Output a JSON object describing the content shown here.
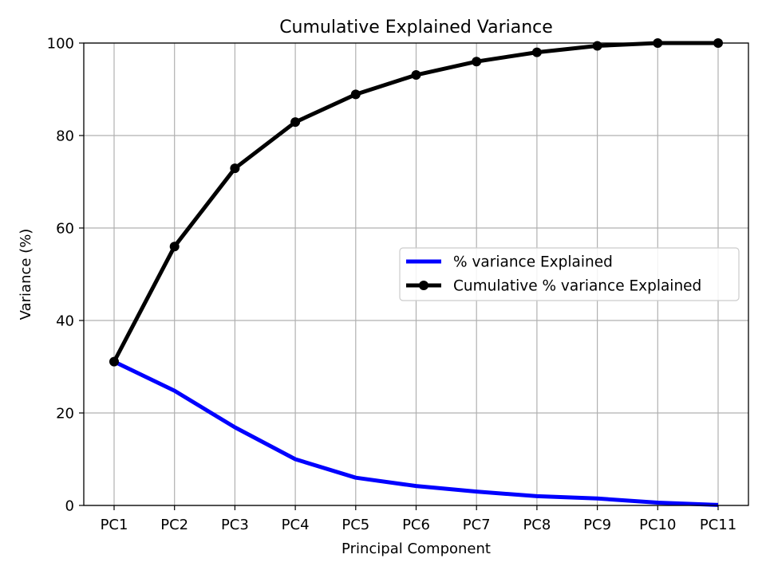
{
  "chart_data": {
    "type": "line",
    "title": "Cumulative Explained Variance",
    "xlabel": "Principal Component",
    "ylabel": "Variance (%)",
    "categories": [
      "PC1",
      "PC2",
      "PC3",
      "PC4",
      "PC5",
      "PC6",
      "PC7",
      "PC8",
      "PC9",
      "PC10",
      "PC11"
    ],
    "ylim": [
      0,
      100
    ],
    "yticks": [
      0,
      20,
      40,
      60,
      80,
      100
    ],
    "grid": true,
    "legend_position": "center-right",
    "series": [
      {
        "name": "% variance Explained",
        "color": "#0000ff",
        "marker": "none",
        "values": [
          31.1,
          24.8,
          16.9,
          10.0,
          6.0,
          4.2,
          3.0,
          2.0,
          1.5,
          0.6,
          0.1
        ]
      },
      {
        "name": "Cumulative % variance Explained",
        "color": "#000000",
        "marker": "circle",
        "values": [
          31.1,
          56.0,
          72.9,
          82.9,
          88.9,
          93.1,
          96.0,
          98.0,
          99.4,
          100.0,
          100.0
        ]
      }
    ]
  }
}
